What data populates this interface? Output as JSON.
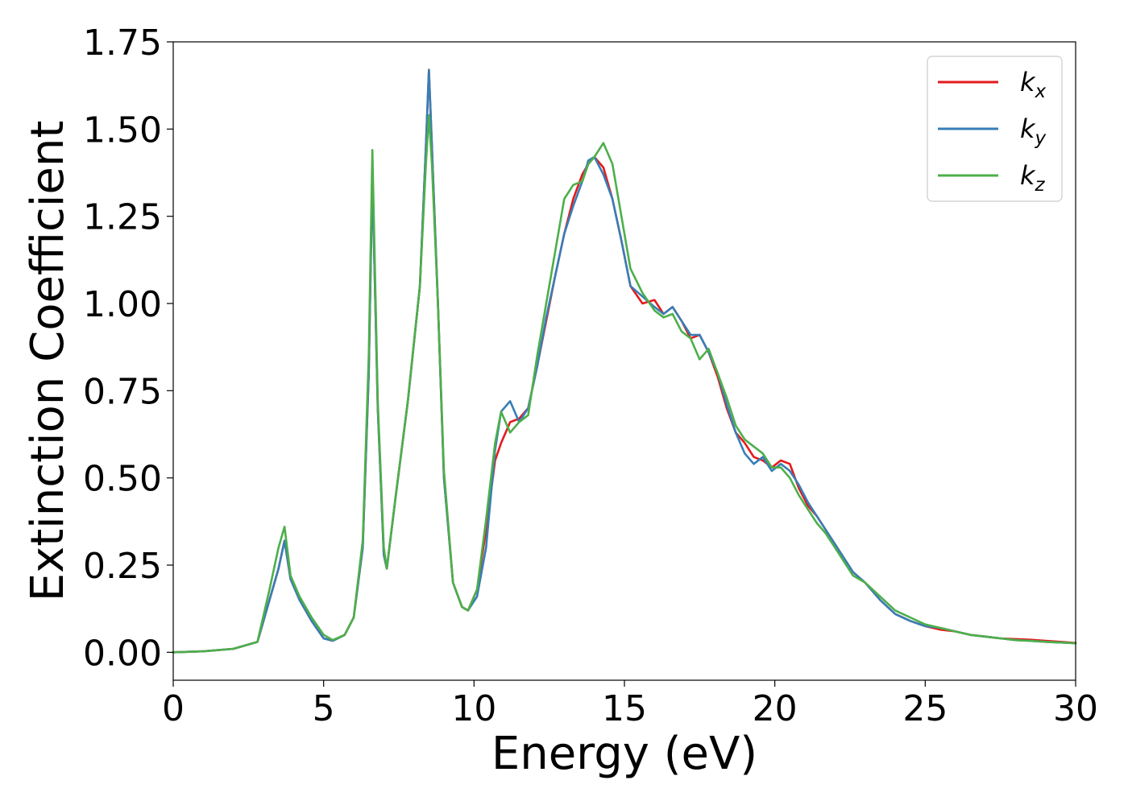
{
  "chart_data": {
    "type": "line",
    "xlabel": "Energy (eV)",
    "ylabel": "Extinction Coefficient",
    "xlim": [
      0,
      30
    ],
    "ylim": [
      -0.08,
      1.75
    ],
    "x_ticks": [
      "0",
      "5",
      "10",
      "15",
      "20",
      "25",
      "30"
    ],
    "x_tick_values": [
      0,
      5,
      10,
      15,
      20,
      25,
      30
    ],
    "y_ticks": [
      "0.00",
      "0.25",
      "0.50",
      "0.75",
      "1.00",
      "1.25",
      "1.50",
      "1.75"
    ],
    "y_tick_values": [
      0,
      0.25,
      0.5,
      0.75,
      1.0,
      1.25,
      1.5,
      1.75
    ],
    "grid": false,
    "legend_position": "top-right",
    "series": [
      {
        "name": "k",
        "subscript": "x",
        "color": "#e41a1c",
        "x": [
          0,
          1,
          2,
          2.8,
          3.2,
          3.5,
          3.7,
          3.9,
          4.2,
          4.6,
          5.0,
          5.3,
          5.7,
          6.0,
          6.3,
          6.5,
          6.62,
          6.8,
          7.0,
          7.1,
          7.4,
          7.8,
          8.2,
          8.4,
          8.5,
          8.6,
          8.8,
          9.0,
          9.3,
          9.6,
          9.8,
          10.1,
          10.4,
          10.7,
          10.9,
          11.2,
          11.5,
          11.8,
          12.1,
          12.4,
          12.7,
          13.0,
          13.3,
          13.6,
          13.8,
          14.0,
          14.3,
          14.6,
          14.9,
          15.2,
          15.6,
          16.0,
          16.3,
          16.6,
          16.9,
          17.2,
          17.5,
          17.8,
          18.1,
          18.4,
          18.7,
          19.0,
          19.3,
          19.6,
          19.9,
          20.2,
          20.5,
          20.8,
          21.1,
          21.4,
          21.7,
          22.0,
          22.3,
          22.6,
          23.0,
          23.5,
          24.0,
          24.5,
          25.0,
          25.5,
          26.0,
          26.5,
          27.0,
          27.5,
          28.0,
          28.5,
          29.0,
          29.5,
          30.0
        ],
        "y": [
          0.0,
          0.003,
          0.01,
          0.03,
          0.15,
          0.24,
          0.32,
          0.21,
          0.15,
          0.09,
          0.04,
          0.033,
          0.05,
          0.1,
          0.3,
          0.8,
          1.37,
          0.7,
          0.28,
          0.24,
          0.45,
          0.72,
          1.05,
          1.45,
          1.67,
          1.45,
          1.0,
          0.5,
          0.2,
          0.13,
          0.12,
          0.18,
          0.35,
          0.55,
          0.6,
          0.66,
          0.67,
          0.7,
          0.82,
          0.95,
          1.08,
          1.2,
          1.3,
          1.37,
          1.4,
          1.42,
          1.39,
          1.3,
          1.18,
          1.05,
          1.0,
          1.01,
          0.97,
          0.99,
          0.95,
          0.9,
          0.91,
          0.86,
          0.79,
          0.7,
          0.63,
          0.6,
          0.56,
          0.55,
          0.53,
          0.55,
          0.54,
          0.47,
          0.42,
          0.39,
          0.35,
          0.31,
          0.27,
          0.23,
          0.2,
          0.15,
          0.11,
          0.09,
          0.075,
          0.065,
          0.06,
          0.05,
          0.045,
          0.04,
          0.038,
          0.036,
          0.033,
          0.03,
          0.027
        ]
      },
      {
        "name": "k",
        "subscript": "y",
        "color": "#377eb8",
        "x": [
          0,
          1,
          2,
          2.8,
          3.2,
          3.5,
          3.7,
          3.9,
          4.2,
          4.6,
          5.0,
          5.3,
          5.7,
          6.0,
          6.3,
          6.5,
          6.62,
          6.8,
          7.0,
          7.1,
          7.4,
          7.8,
          8.2,
          8.4,
          8.5,
          8.6,
          8.8,
          9.0,
          9.3,
          9.6,
          9.8,
          10.1,
          10.4,
          10.7,
          10.9,
          11.2,
          11.5,
          11.8,
          12.1,
          12.4,
          12.7,
          13.0,
          13.3,
          13.6,
          13.8,
          14.0,
          14.3,
          14.6,
          14.9,
          15.2,
          15.6,
          16.0,
          16.3,
          16.6,
          16.9,
          17.2,
          17.5,
          17.8,
          18.1,
          18.4,
          18.7,
          19.0,
          19.3,
          19.6,
          19.9,
          20.2,
          20.5,
          20.8,
          21.1,
          21.4,
          21.7,
          22.0,
          22.3,
          22.6,
          23.0,
          23.5,
          24.0,
          24.5,
          25.0,
          25.5,
          26.0,
          26.5,
          27.0,
          27.5,
          28.0,
          28.5,
          29.0,
          29.5,
          30.0
        ],
        "y": [
          0.0,
          0.003,
          0.01,
          0.03,
          0.15,
          0.24,
          0.32,
          0.21,
          0.15,
          0.09,
          0.04,
          0.033,
          0.05,
          0.1,
          0.3,
          0.8,
          1.37,
          0.7,
          0.28,
          0.24,
          0.45,
          0.72,
          1.05,
          1.45,
          1.67,
          1.45,
          1.0,
          0.5,
          0.2,
          0.13,
          0.12,
          0.16,
          0.3,
          0.58,
          0.69,
          0.72,
          0.66,
          0.7,
          0.82,
          0.96,
          1.08,
          1.2,
          1.28,
          1.35,
          1.41,
          1.42,
          1.37,
          1.3,
          1.18,
          1.05,
          1.02,
          0.99,
          0.97,
          0.99,
          0.95,
          0.91,
          0.91,
          0.86,
          0.8,
          0.71,
          0.63,
          0.57,
          0.54,
          0.56,
          0.52,
          0.54,
          0.52,
          0.48,
          0.43,
          0.39,
          0.35,
          0.31,
          0.27,
          0.23,
          0.2,
          0.15,
          0.11,
          0.09,
          0.075,
          0.07,
          0.06,
          0.05,
          0.045,
          0.04,
          0.035,
          0.033,
          0.03,
          0.028,
          0.026
        ]
      },
      {
        "name": "k",
        "subscript": "z",
        "color": "#4daf4a",
        "x": [
          0,
          1,
          2,
          2.8,
          3.2,
          3.5,
          3.7,
          3.9,
          4.2,
          4.6,
          5.0,
          5.3,
          5.7,
          6.0,
          6.3,
          6.5,
          6.62,
          6.8,
          7.0,
          7.1,
          7.4,
          7.8,
          8.2,
          8.4,
          8.5,
          8.6,
          8.8,
          9.0,
          9.3,
          9.6,
          9.8,
          10.1,
          10.4,
          10.7,
          10.9,
          11.2,
          11.5,
          11.8,
          12.1,
          12.4,
          12.7,
          13.0,
          13.3,
          13.6,
          13.8,
          14.0,
          14.3,
          14.6,
          14.9,
          15.2,
          15.6,
          16.0,
          16.3,
          16.6,
          16.9,
          17.2,
          17.5,
          17.8,
          18.1,
          18.4,
          18.7,
          19.0,
          19.3,
          19.6,
          19.9,
          20.2,
          20.5,
          20.8,
          21.1,
          21.4,
          21.7,
          22.0,
          22.3,
          22.6,
          23.0,
          23.5,
          24.0,
          24.5,
          25.0,
          25.5,
          26.0,
          26.5,
          27.0,
          27.5,
          28.0,
          28.5,
          29.0,
          29.5,
          30.0
        ],
        "y": [
          0.0,
          0.003,
          0.01,
          0.03,
          0.18,
          0.3,
          0.36,
          0.22,
          0.16,
          0.1,
          0.05,
          0.035,
          0.05,
          0.1,
          0.32,
          0.85,
          1.44,
          0.72,
          0.3,
          0.24,
          0.45,
          0.72,
          1.05,
          1.4,
          1.54,
          1.4,
          1.0,
          0.52,
          0.2,
          0.13,
          0.12,
          0.18,
          0.38,
          0.6,
          0.69,
          0.63,
          0.66,
          0.68,
          0.85,
          1.0,
          1.15,
          1.3,
          1.34,
          1.35,
          1.4,
          1.42,
          1.46,
          1.4,
          1.25,
          1.1,
          1.03,
          0.98,
          0.96,
          0.97,
          0.92,
          0.9,
          0.84,
          0.87,
          0.8,
          0.73,
          0.65,
          0.61,
          0.59,
          0.57,
          0.53,
          0.53,
          0.5,
          0.45,
          0.41,
          0.37,
          0.34,
          0.3,
          0.26,
          0.22,
          0.2,
          0.16,
          0.12,
          0.1,
          0.08,
          0.07,
          0.06,
          0.05,
          0.045,
          0.04,
          0.035,
          0.033,
          0.03,
          0.028,
          0.026
        ]
      }
    ]
  }
}
